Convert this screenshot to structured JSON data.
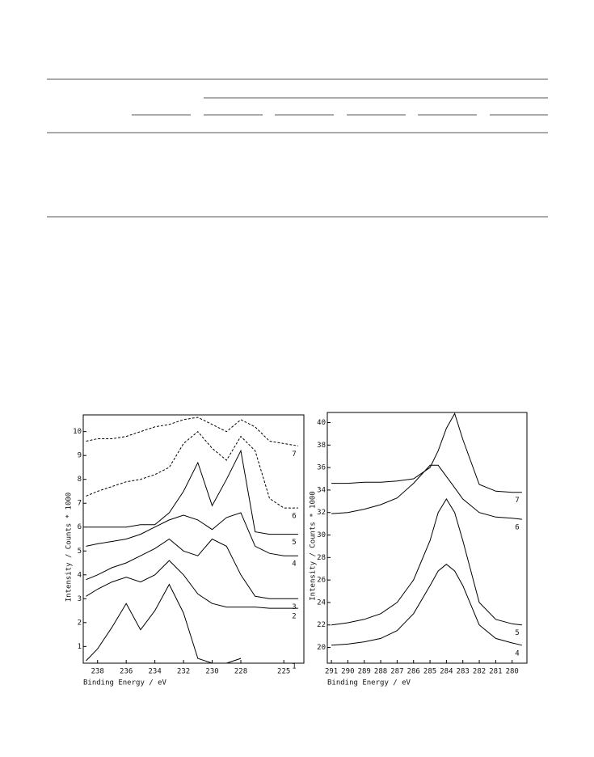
{
  "chart_data": [
    {
      "type": "line",
      "x_label": "Binding Energy / eV",
      "y_label": "Intensity / Counts * 1000",
      "x": [
        238.8,
        238,
        237,
        236,
        235,
        234,
        233,
        232,
        231,
        230,
        229,
        228,
        227,
        226,
        225,
        224
      ],
      "xlim": [
        239,
        223.6
      ],
      "xticks": [
        238,
        236,
        234,
        232,
        230,
        228,
        225
      ],
      "ylim": [
        0.3,
        10.7
      ],
      "yticks": [
        1,
        2,
        3,
        4,
        5,
        6,
        7,
        8,
        9,
        10
      ],
      "series": [
        {
          "name": "1",
          "color": "#000",
          "values": [
            0.4,
            0.9,
            1.8,
            2.8,
            1.7,
            2.5,
            3.6,
            2.4,
            0.5,
            0.3,
            0.3,
            0.5,
            null,
            null,
            null,
            null
          ]
        },
        {
          "name": "2",
          "color": "#000",
          "values": [
            3.1,
            3.4,
            3.7,
            3.9,
            3.7,
            4.0,
            4.6,
            4.0,
            3.2,
            2.8,
            2.65,
            2.65,
            2.65,
            2.6,
            2.6,
            2.6
          ]
        },
        {
          "name": "3",
          "color": "#000",
          "values": [
            3.8,
            4.0,
            4.3,
            4.5,
            4.8,
            5.1,
            5.5,
            5.0,
            4.8,
            5.5,
            5.2,
            4.0,
            3.1,
            3.0,
            3.0,
            3.0
          ]
        },
        {
          "name": "4",
          "color": "#000",
          "values": [
            5.2,
            5.3,
            5.4,
            5.5,
            5.7,
            6.0,
            6.3,
            6.5,
            6.3,
            5.9,
            6.4,
            6.6,
            5.2,
            4.9,
            4.8,
            4.8
          ]
        },
        {
          "name": "5",
          "color": "#000",
          "values": [
            6.0,
            6.0,
            6.0,
            6.0,
            6.1,
            6.1,
            6.6,
            7.5,
            8.7,
            6.9,
            8.0,
            9.2,
            5.8,
            5.7,
            5.7,
            5.7
          ]
        },
        {
          "name": "6",
          "color": "#000",
          "dashed": true,
          "values": [
            7.3,
            7.5,
            7.7,
            7.9,
            8.0,
            8.2,
            8.5,
            9.5,
            10.0,
            9.3,
            8.8,
            9.8,
            9.2,
            7.2,
            6.8,
            6.8
          ]
        },
        {
          "name": "7",
          "color": "#000",
          "dashed": true,
          "values": [
            9.6,
            9.7,
            9.7,
            9.8,
            10.0,
            10.2,
            10.3,
            10.5,
            10.6,
            10.3,
            10.0,
            10.5,
            10.2,
            9.6,
            9.5,
            9.4
          ]
        }
      ]
    },
    {
      "type": "line",
      "x_label": "Binding Energy / eV",
      "y_label": "Intensity / Counts * 1000",
      "x": [
        291,
        290,
        289,
        288,
        287,
        286,
        285,
        284.5,
        284,
        283.5,
        283,
        282,
        281,
        280,
        279.4
      ],
      "xlim": [
        291.25,
        279.1
      ],
      "xticks": [
        291,
        290,
        289,
        288,
        287,
        286,
        285,
        284,
        283,
        282,
        281,
        280
      ],
      "ylim": [
        18.6,
        40.9
      ],
      "yticks": [
        20,
        22,
        24,
        26,
        28,
        30,
        32,
        34,
        36,
        38,
        40
      ],
      "series": [
        {
          "name": "4",
          "color": "#000",
          "values": [
            20.2,
            20.3,
            20.5,
            20.8,
            21.5,
            23.0,
            25.5,
            26.8,
            27.4,
            26.8,
            25.5,
            22.0,
            20.8,
            20.4,
            20.2
          ]
        },
        {
          "name": "5",
          "color": "#000",
          "values": [
            22.0,
            22.2,
            22.5,
            23.0,
            24.0,
            26.0,
            29.5,
            32.0,
            33.2,
            32.0,
            29.5,
            24.0,
            22.5,
            22.1,
            22.0
          ]
        },
        {
          "name": "6",
          "color": "#000",
          "values": [
            31.9,
            32.0,
            32.3,
            32.7,
            33.3,
            34.6,
            36.2,
            36.2,
            35.2,
            34.2,
            33.2,
            32.0,
            31.6,
            31.5,
            31.4
          ]
        },
        {
          "name": "7",
          "color": "#000",
          "values": [
            34.6,
            34.6,
            34.7,
            34.7,
            34.8,
            35.0,
            36.0,
            37.5,
            39.5,
            40.8,
            38.5,
            34.5,
            33.9,
            33.8,
            33.8
          ]
        }
      ]
    }
  ]
}
